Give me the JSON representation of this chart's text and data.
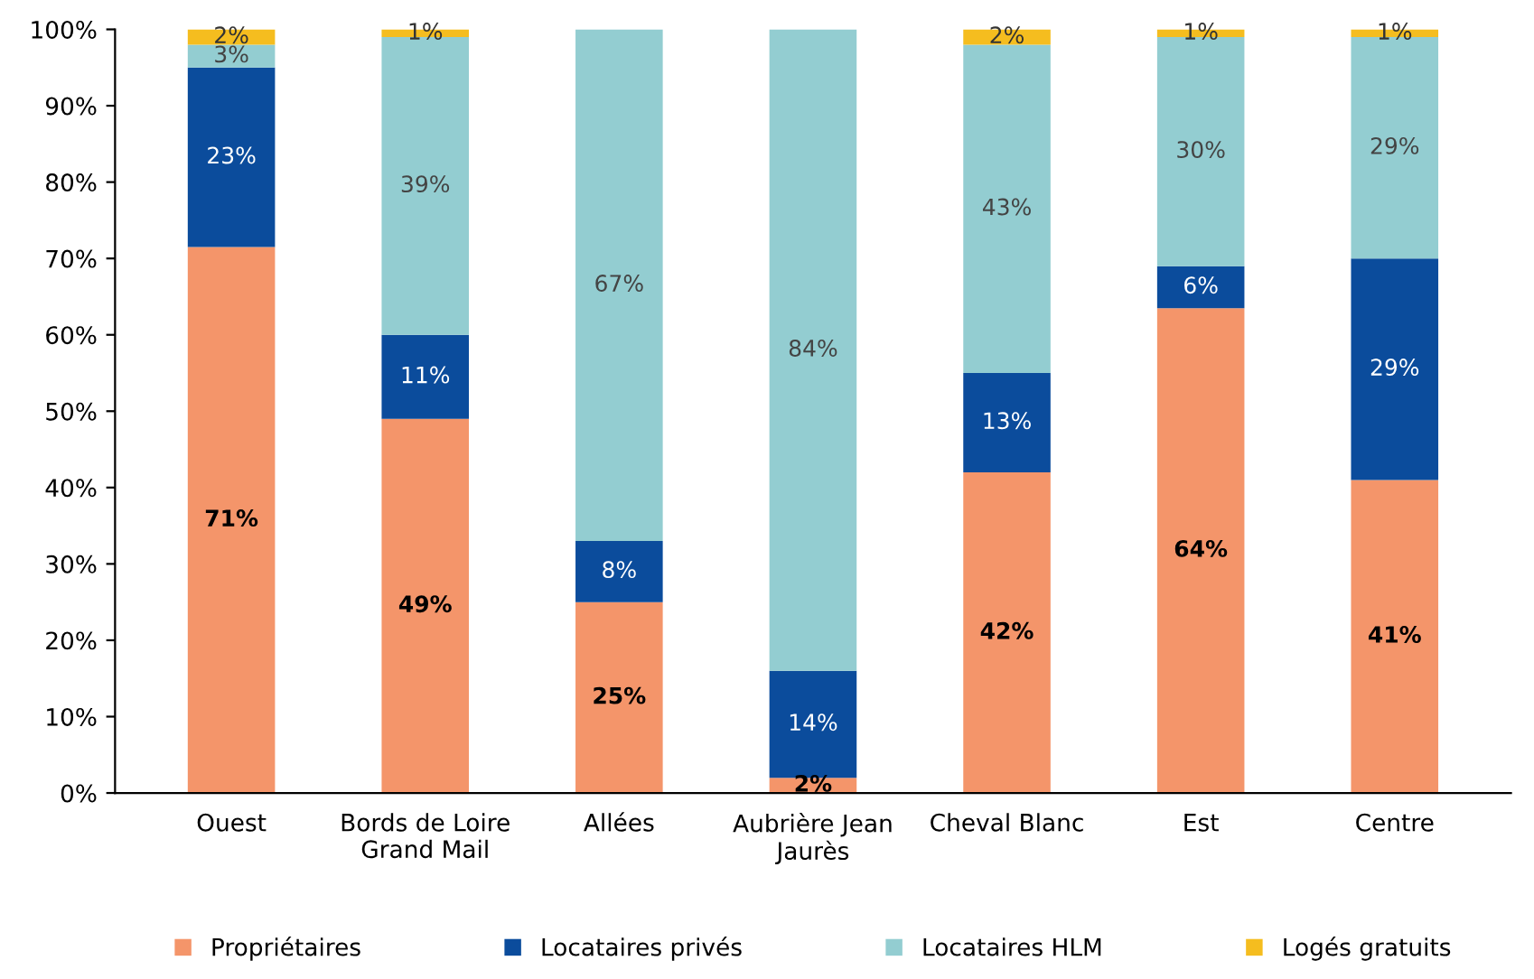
{
  "chart_data": {
    "type": "bar",
    "stacked": true,
    "categories": [
      "Ouest",
      "Bords de Loire\nGrand Mail",
      "Allées",
      "Aubrière Jean\nJaurès",
      "Cheval Blanc",
      "Est",
      "Centre"
    ],
    "series": [
      {
        "name": "Propriétaires",
        "color": "#f4956a",
        "values": [
          71.5,
          49,
          25,
          2,
          42,
          63.5,
          41
        ],
        "value_labels": [
          "71%",
          "49%",
          "25%",
          "2%",
          "42%",
          "64%",
          "41%"
        ]
      },
      {
        "name": "Locataires privés",
        "color": "#0b4c9c",
        "values": [
          23.5,
          11,
          8,
          14,
          13,
          5.5,
          29
        ],
        "value_labels": [
          "23%",
          "11%",
          "8%",
          "14%",
          "13%",
          "6%",
          "29%"
        ]
      },
      {
        "name": "Locataires HLM",
        "color": "#93cdd1",
        "values": [
          3,
          39,
          67,
          84,
          43,
          30,
          29
        ],
        "value_labels": [
          "3%",
          "39%",
          "67%",
          "84%",
          "43%",
          "30%",
          "29%"
        ]
      },
      {
        "name": "Logés gratuits",
        "color": "#f5bd1f",
        "values": [
          2,
          1,
          0,
          0,
          2,
          1,
          1
        ],
        "value_labels": [
          "2%",
          "1%",
          null,
          null,
          "2%",
          "1%",
          "1%"
        ]
      }
    ],
    "ylim": [
      0,
      100
    ],
    "yticks": [
      {
        "value": 0,
        "label": "0%"
      },
      {
        "value": 10,
        "label": "10%"
      },
      {
        "value": 20,
        "label": "20%"
      },
      {
        "value": 30,
        "label": "30%"
      },
      {
        "value": 40,
        "label": "40%"
      },
      {
        "value": 50,
        "label": "50%"
      },
      {
        "value": 60,
        "label": "60%"
      },
      {
        "value": 70,
        "label": "70%"
      },
      {
        "value": 80,
        "label": "80%"
      },
      {
        "value": 90,
        "label": "90%"
      },
      {
        "value": 100,
        "label": "100%"
      }
    ],
    "legend": "bottom"
  }
}
